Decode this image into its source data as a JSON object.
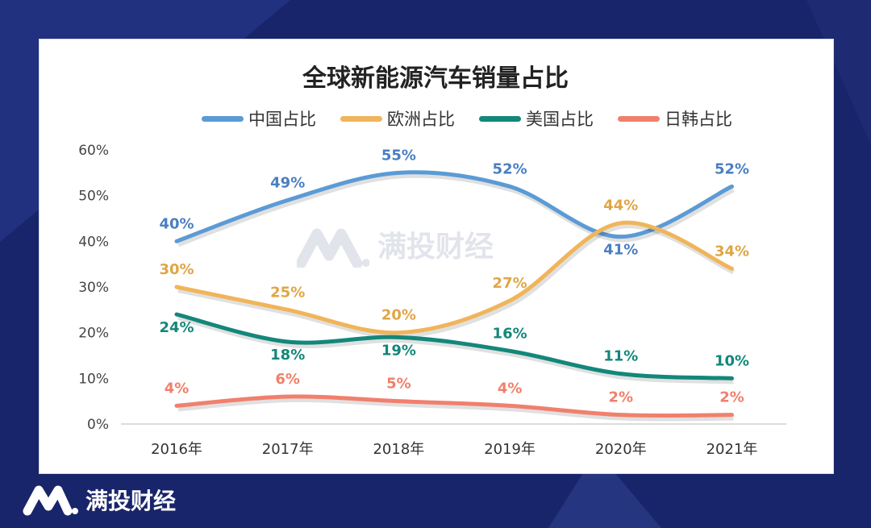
{
  "brand": {
    "name": "满投财经"
  },
  "watermark": "满投财经",
  "colors": {
    "background": "#19256a",
    "china": "#5b9bd5",
    "europe": "#f0b55a",
    "usa": "#13877a",
    "japan_korea": "#f0806c"
  },
  "chart_data": {
    "type": "line",
    "title": "全球新能源汽车销量占比",
    "categories": [
      "2016年",
      "2017年",
      "2018年",
      "2019年",
      "2020年",
      "2021年"
    ],
    "ylim": [
      0,
      60
    ],
    "yticks": [
      "0%",
      "10%",
      "20%",
      "30%",
      "40%",
      "50%",
      "60%"
    ],
    "grid": false,
    "legend": "top",
    "smooth": true,
    "series": [
      {
        "name": "中国占比",
        "values": [
          40,
          49,
          55,
          52,
          41,
          52
        ],
        "labels": [
          "40%",
          "49%",
          "55%",
          "52%",
          "41%",
          "52%"
        ]
      },
      {
        "name": "欧洲占比",
        "values": [
          30,
          25,
          20,
          27,
          44,
          34
        ],
        "labels": [
          "30%",
          "25%",
          "20%",
          "27%",
          "44%",
          "34%"
        ]
      },
      {
        "name": "美国占比",
        "values": [
          24,
          18,
          19,
          16,
          11,
          10
        ],
        "labels": [
          "24%",
          "18%",
          "19%",
          "16%",
          "11%",
          "10%"
        ]
      },
      {
        "name": "日韩占比",
        "values": [
          4,
          6,
          5,
          4,
          2,
          2
        ],
        "labels": [
          "4%",
          "6%",
          "5%",
          "4%",
          "2%",
          "2%"
        ]
      }
    ]
  }
}
